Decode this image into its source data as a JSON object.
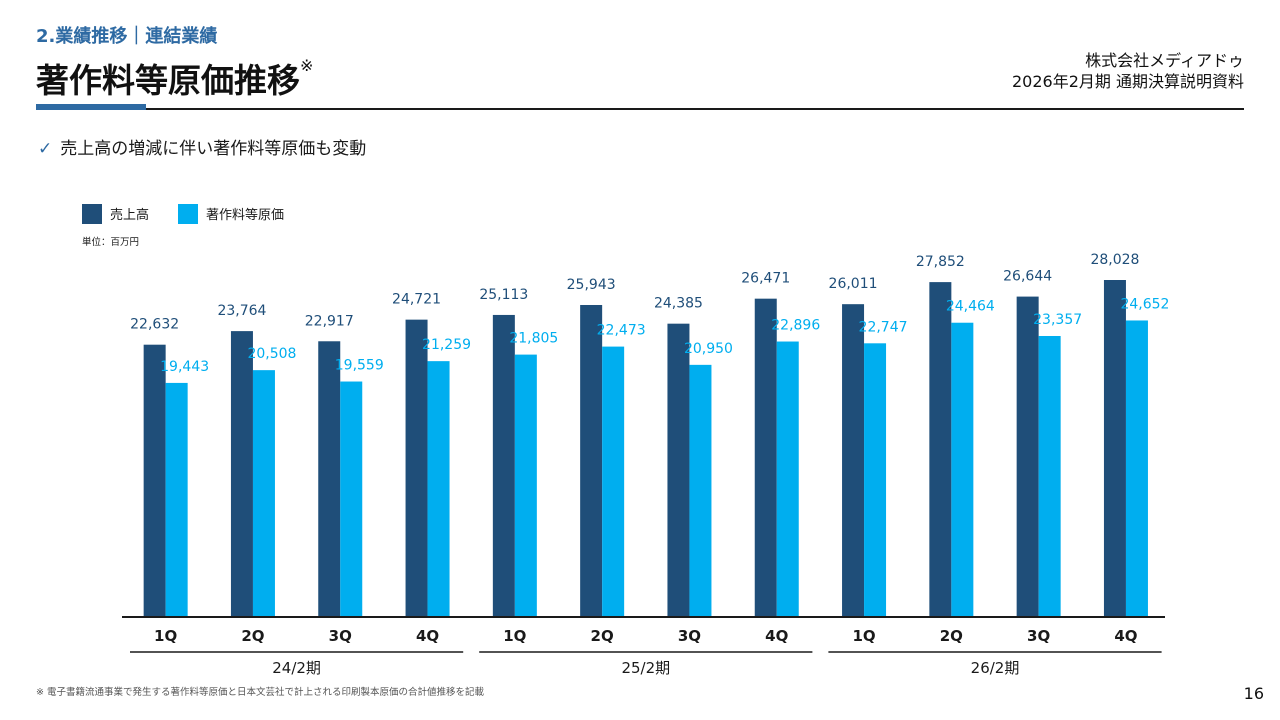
{
  "header": {
    "section_label": "2.業績推移｜連結業績",
    "title": "著作料等原価推移",
    "title_mark": "※",
    "company": "株式会社メディアドゥ",
    "document": "2026年2月期 通期決算説明資料"
  },
  "bullet": {
    "icon": "check-icon",
    "text": "売上高の増減に伴い著作料等原価も変動"
  },
  "footnote": "※ 電子書籍流通事業で発生する著作料等原価と日本文芸社で計上される印刷製本原価の合計値推移を記載",
  "page_number": "16",
  "colors": {
    "accent": "#2e6aa3",
    "sales": "#1f4e79",
    "cost": "#00aeef"
  },
  "chart_data": {
    "type": "bar",
    "unit_label": "単位：百万円",
    "categories": [
      "1Q",
      "2Q",
      "3Q",
      "4Q",
      "1Q",
      "2Q",
      "3Q",
      "4Q",
      "1Q",
      "2Q",
      "3Q",
      "4Q"
    ],
    "groups": [
      {
        "label": "24/2期",
        "span": [
          0,
          3
        ]
      },
      {
        "label": "25/2期",
        "span": [
          4,
          7
        ]
      },
      {
        "label": "26/2期",
        "span": [
          8,
          11
        ]
      }
    ],
    "series": [
      {
        "name": "売上高",
        "color": "#1f4e79",
        "values": [
          22632,
          23764,
          22917,
          24721,
          25113,
          25943,
          24385,
          26471,
          26011,
          27852,
          26644,
          28028
        ],
        "labels": [
          "22,632",
          "23,764",
          "22,917",
          "24,721",
          "25,113",
          "25,943",
          "24,385",
          "26,471",
          "26,011",
          "27,852",
          "26,644",
          "28,028"
        ]
      },
      {
        "name": "著作料等原価",
        "color": "#00aeef",
        "values": [
          19443,
          20508,
          19559,
          21259,
          21805,
          22473,
          20950,
          22896,
          22747,
          24464,
          23357,
          24652
        ],
        "labels": [
          "19,443",
          "20,508",
          "19,559",
          "21,259",
          "21,805",
          "22,473",
          "20,950",
          "22,896",
          "22,747",
          "24,464",
          "23,357",
          "24,652"
        ]
      }
    ],
    "ylim": [
      0,
      28028
    ],
    "legend": "top-left",
    "grid": false
  }
}
